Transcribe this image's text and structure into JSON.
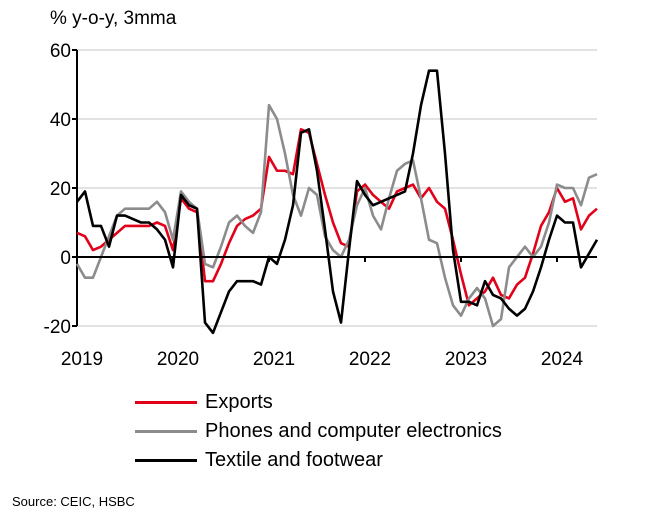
{
  "chart_data": {
    "type": "line",
    "ylabel": "% y-o-y, 3mma",
    "ylim": [
      -20,
      60
    ],
    "yticks": [
      "-20",
      "0",
      "20",
      "40",
      "60"
    ],
    "xlabels": [
      "2019",
      "2020",
      "2021",
      "2022",
      "2023",
      "2024"
    ],
    "x_start": "2019-01",
    "x_end": "2024-06",
    "grid": true,
    "legend_position": "bottom",
    "series": [
      {
        "name": "Exports",
        "color": "#e2001a",
        "values": [
          7,
          6,
          2,
          3,
          5,
          7,
          9,
          9,
          9,
          9,
          10,
          9,
          2,
          17,
          14,
          13,
          -7,
          -7,
          -2,
          4,
          9,
          11,
          12,
          14,
          29,
          25,
          25,
          24,
          37,
          36,
          27,
          18,
          10,
          4,
          3,
          19,
          21,
          18,
          16,
          14,
          19,
          20,
          21,
          17,
          20,
          16,
          14,
          5,
          -5,
          -14,
          -12,
          -10,
          -6,
          -11,
          -12,
          -8,
          -6,
          1,
          9,
          13,
          20,
          16,
          17,
          8,
          12,
          14
        ]
      },
      {
        "name": "Phones and computer electronics",
        "color": "#8c8c8c",
        "values": [
          -2,
          -6,
          -6,
          0,
          6,
          12,
          14,
          14,
          14,
          14,
          16,
          13,
          5,
          19,
          16,
          14,
          -2,
          -3,
          3,
          10,
          12,
          9,
          7,
          13,
          44,
          40,
          30,
          18,
          12,
          20,
          18,
          6,
          2,
          0,
          5,
          15,
          20,
          12,
          8,
          17,
          25,
          27,
          28,
          17,
          5,
          4,
          -6,
          -14,
          -17,
          -12,
          -9,
          -12,
          -20,
          -18,
          -3,
          0,
          3,
          0,
          3,
          10,
          21,
          20,
          20,
          15,
          23,
          24
        ]
      },
      {
        "name": "Textile and footwear",
        "color": "#000000",
        "values": [
          16,
          19,
          9,
          9,
          3,
          12,
          12,
          11,
          10,
          10,
          8,
          5,
          -3,
          18,
          15,
          14,
          -19,
          -22,
          -16,
          -10,
          -7,
          -7,
          -7,
          -8,
          0,
          -2,
          5,
          15,
          36,
          37,
          25,
          8,
          -10,
          -19,
          2,
          22,
          18,
          15,
          16,
          17,
          18,
          19,
          30,
          44,
          54,
          54,
          30,
          2,
          -13,
          -13,
          -14,
          -7,
          -11,
          -12,
          -15,
          -17,
          -15,
          -10,
          -3,
          5,
          12,
          10,
          10,
          -3,
          1,
          5
        ]
      }
    ]
  },
  "source": "Source: CEIC, HSBC"
}
